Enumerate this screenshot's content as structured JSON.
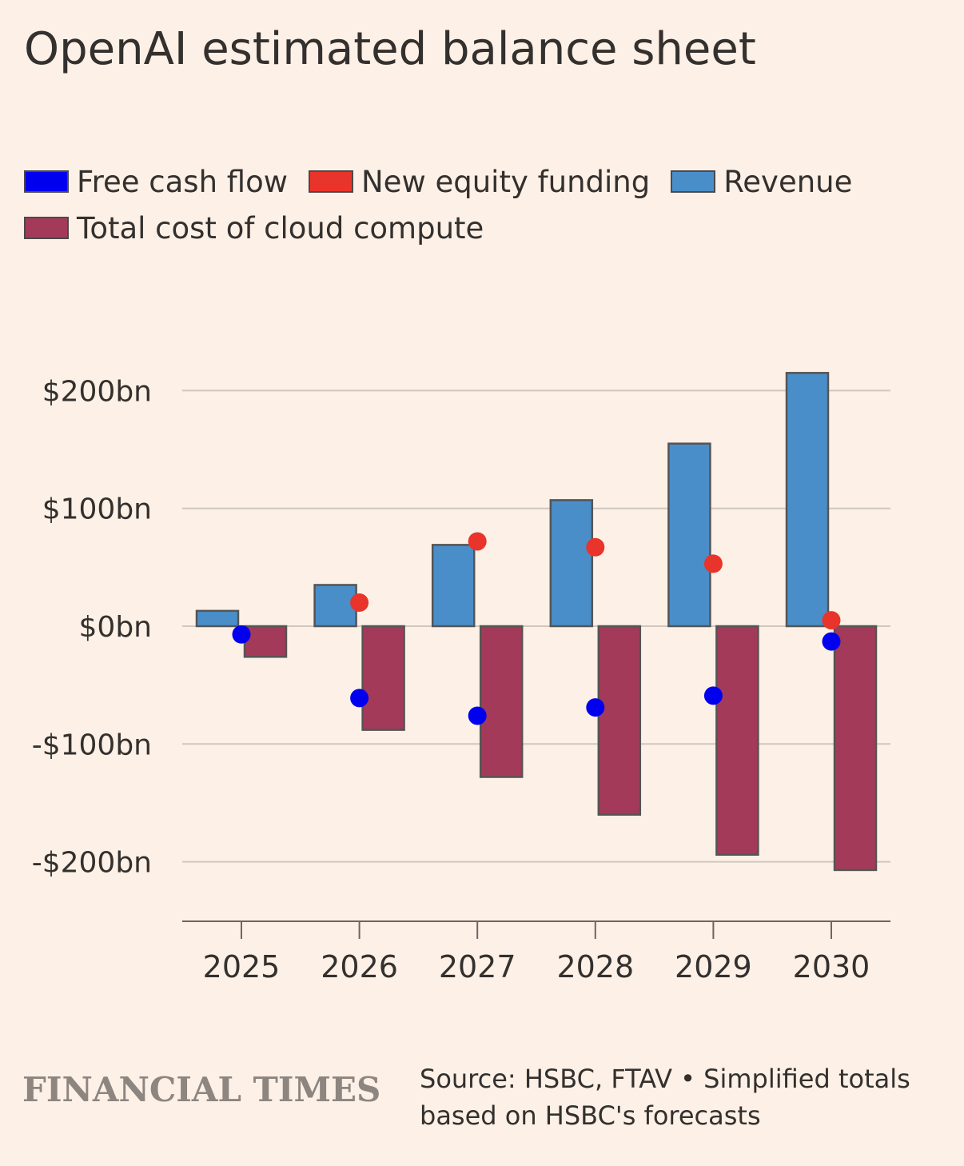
{
  "title": "OpenAI estimated balance sheet",
  "legend": [
    {
      "name": "Free cash flow",
      "color": "#0000ee",
      "key": "fcf"
    },
    {
      "name": "New equity funding",
      "color": "#e8342a",
      "key": "equity"
    },
    {
      "name": "Revenue",
      "color": "#4a8ec9",
      "key": "revenue"
    },
    {
      "name": "Total cost of cloud compute",
      "color": "#a33a5a",
      "key": "compute"
    }
  ],
  "footer": {
    "logo": "FINANCIAL TIMES",
    "source_line1": "Source: HSBC, FTAV • Simplified totals",
    "source_line2": "based on HSBC's forecasts"
  },
  "colors": {
    "background": "#fdf0e6",
    "gridline": "#cfc7c0",
    "axis": "#6b6663",
    "bar_stroke": "#555555",
    "text": "#33302e"
  },
  "chart_data": {
    "type": "bar",
    "categories": [
      "2025",
      "2026",
      "2027",
      "2028",
      "2029",
      "2030"
    ],
    "series": [
      {
        "name": "Revenue",
        "kind": "bar",
        "values": [
          13,
          35,
          69,
          107,
          155,
          215
        ]
      },
      {
        "name": "Total cost of cloud compute",
        "kind": "bar",
        "values": [
          -26,
          -88,
          -128,
          -160,
          -194,
          -207
        ]
      },
      {
        "name": "New equity funding",
        "kind": "point",
        "values": [
          null,
          20,
          72,
          67,
          53,
          5
        ]
      },
      {
        "name": "Free cash flow",
        "kind": "point",
        "values": [
          -7,
          -61,
          -76,
          -69,
          -59,
          -13
        ]
      }
    ],
    "yticks": [
      200,
      100,
      0,
      -100,
      -200
    ],
    "ytick_labels": [
      "$200bn",
      "$100bn",
      "$0bn",
      "-$100bn",
      "-$200bn"
    ],
    "ylim": [
      -250,
      215
    ],
    "title": "OpenAI estimated balance sheet",
    "xlabel": "",
    "ylabel": "",
    "legend_position": "top"
  }
}
